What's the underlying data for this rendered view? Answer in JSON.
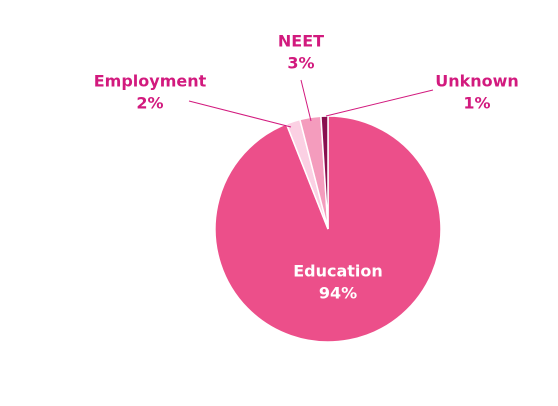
{
  "chart_data": {
    "type": "pie",
    "title": "",
    "start_angle_deg": 0,
    "direction": "clockwise",
    "slices": [
      {
        "label": "Education",
        "value": 94,
        "value_label": "94%",
        "color": "#ec4f8a",
        "label_color": "#ffffff"
      },
      {
        "label": "Employment",
        "value": 2,
        "value_label": "2%",
        "color": "#fbd0e3",
        "label_color": "#d21a7e"
      },
      {
        "label": "NEET",
        "value": 3,
        "value_label": "3%",
        "color": "#f49cbd",
        "label_color": "#d21a7e"
      },
      {
        "label": "Unknown",
        "value": 1,
        "value_label": "1%",
        "color": "#8a0f4f",
        "label_color": "#d21a7e"
      }
    ],
    "leader_line_color": "#d21a7e",
    "slice_border_color": "#ffffff"
  }
}
